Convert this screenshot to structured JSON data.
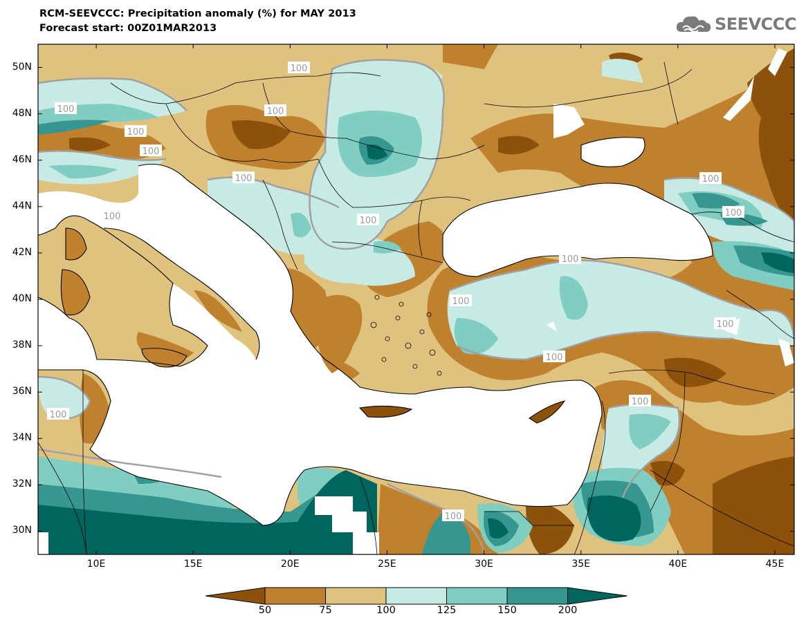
{
  "title": {
    "line1": "RCM-SEEVCCC: Precipitation anomaly (%) for MAY 2013",
    "line2": "Forecast start: 00Z01MAR2013"
  },
  "logo": {
    "text": "SEEVCCC",
    "icon": "cloud-icon"
  },
  "map": {
    "lat_labels": [
      "50N",
      "48N",
      "46N",
      "44N",
      "42N",
      "40N",
      "38N",
      "36N",
      "34N",
      "32N",
      "30N"
    ],
    "lon_labels": [
      "10E",
      "15E",
      "20E",
      "25E",
      "30E",
      "35E",
      "40E",
      "45E"
    ],
    "contour_label": "100",
    "contour_labels_visible": 17,
    "extent": {
      "lon": [
        7,
        46
      ],
      "lat": [
        29,
        51
      ]
    }
  },
  "colorbar": {
    "labels": [
      "50",
      "75",
      "100",
      "125",
      "150",
      "200"
    ],
    "colors": [
      "#8c510a",
      "#bf812d",
      "#dfc27d",
      "#c7eae5",
      "#80cdc1",
      "#35978f",
      "#01665e"
    ]
  },
  "colors": {
    "very_dry": "#8c510a",
    "dry": "#bf812d",
    "slightly_dry": "#dfc27d",
    "slightly_wet": "#c7eae5",
    "wet": "#80cdc1",
    "very_wet": "#35978f",
    "extreme_wet": "#01665e",
    "contour": "#a0a0a0"
  }
}
